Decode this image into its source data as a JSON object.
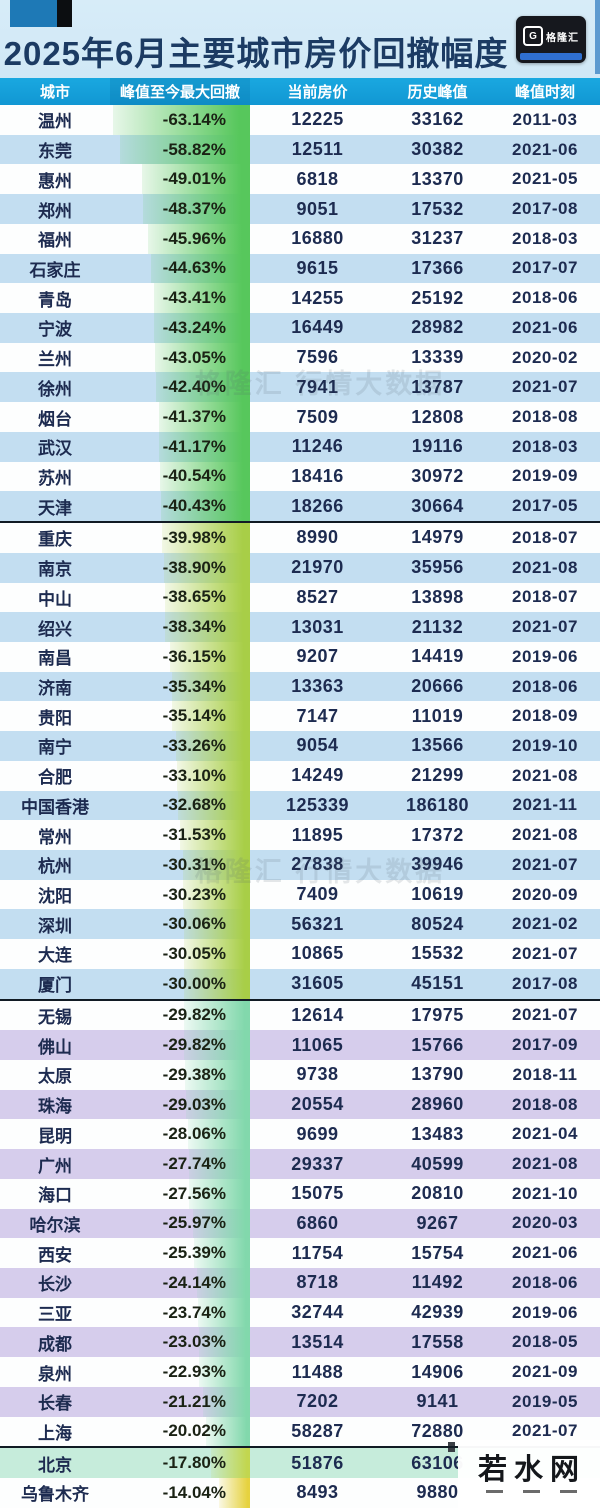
{
  "page_title": "2025年6月主要城市房价回撤幅度",
  "branding": {
    "logo_text": "格隆汇",
    "logo_glyph": "G"
  },
  "watermarks": {
    "center_text": "格隆汇 行情大数据",
    "corner_text": "若水网"
  },
  "colors": {
    "header_bg": "#1199d4",
    "row_tint_blue": "#c3def1",
    "row_tint_purple": "#d6cdec",
    "row_tint_teal": "#c6ecdb",
    "text": "#1d2b50",
    "divider": "#111b24",
    "bar_green": "#57c75c",
    "bar_yellowgreen": "#a8ce47",
    "bar_teal": "#82d8ac",
    "bar_olive": "#c2d64f",
    "bar_yellow": "#e6d23f"
  },
  "chart_data": {
    "type": "table",
    "title": "2025年6月主要城市房价回撤幅度",
    "columns": [
      "城市",
      "峰值至今最大回撤",
      "当前房价",
      "历史峰值",
      "峰值时刻"
    ],
    "dividers_after": [
      14,
      30,
      45
    ],
    "rows": [
      {
        "city": "温州",
        "pct": -63.14,
        "drawdown": "-63.14%",
        "price": "12225",
        "peak": "33162",
        "date": "2011-03",
        "band": "blue",
        "bar": "bar_green"
      },
      {
        "city": "东莞",
        "pct": -58.82,
        "drawdown": "-58.82%",
        "price": "12511",
        "peak": "30382",
        "date": "2021-06",
        "band": "blue",
        "bar": "bar_green"
      },
      {
        "city": "惠州",
        "pct": -49.01,
        "drawdown": "-49.01%",
        "price": "6818",
        "peak": "13370",
        "date": "2021-05",
        "band": "blue",
        "bar": "bar_green"
      },
      {
        "city": "郑州",
        "pct": -48.37,
        "drawdown": "-48.37%",
        "price": "9051",
        "peak": "17532",
        "date": "2017-08",
        "band": "blue",
        "bar": "bar_green"
      },
      {
        "city": "福州",
        "pct": -45.96,
        "drawdown": "-45.96%",
        "price": "16880",
        "peak": "31237",
        "date": "2018-03",
        "band": "blue",
        "bar": "bar_green"
      },
      {
        "city": "石家庄",
        "pct": -44.63,
        "drawdown": "-44.63%",
        "price": "9615",
        "peak": "17366",
        "date": "2017-07",
        "band": "blue",
        "bar": "bar_green"
      },
      {
        "city": "青岛",
        "pct": -43.41,
        "drawdown": "-43.41%",
        "price": "14255",
        "peak": "25192",
        "date": "2018-06",
        "band": "blue",
        "bar": "bar_green"
      },
      {
        "city": "宁波",
        "pct": -43.24,
        "drawdown": "-43.24%",
        "price": "16449",
        "peak": "28982",
        "date": "2021-06",
        "band": "blue",
        "bar": "bar_green"
      },
      {
        "city": "兰州",
        "pct": -43.05,
        "drawdown": "-43.05%",
        "price": "7596",
        "peak": "13339",
        "date": "2020-02",
        "band": "blue",
        "bar": "bar_green"
      },
      {
        "city": "徐州",
        "pct": -42.4,
        "drawdown": "-42.40%",
        "price": "7941",
        "peak": "13787",
        "date": "2021-07",
        "band": "blue",
        "bar": "bar_green"
      },
      {
        "city": "烟台",
        "pct": -41.37,
        "drawdown": "-41.37%",
        "price": "7509",
        "peak": "12808",
        "date": "2018-08",
        "band": "blue",
        "bar": "bar_green"
      },
      {
        "city": "武汉",
        "pct": -41.17,
        "drawdown": "-41.17%",
        "price": "11246",
        "peak": "19116",
        "date": "2018-03",
        "band": "blue",
        "bar": "bar_green"
      },
      {
        "city": "苏州",
        "pct": -40.54,
        "drawdown": "-40.54%",
        "price": "18416",
        "peak": "30972",
        "date": "2019-09",
        "band": "blue",
        "bar": "bar_green"
      },
      {
        "city": "天津",
        "pct": -40.43,
        "drawdown": "-40.43%",
        "price": "18266",
        "peak": "30664",
        "date": "2017-05",
        "band": "blue",
        "bar": "bar_green"
      },
      {
        "city": "重庆",
        "pct": -39.98,
        "drawdown": "-39.98%",
        "price": "8990",
        "peak": "14979",
        "date": "2018-07",
        "band": "blue",
        "bar": "bar_yellowgreen"
      },
      {
        "city": "南京",
        "pct": -38.9,
        "drawdown": "-38.90%",
        "price": "21970",
        "peak": "35956",
        "date": "2021-08",
        "band": "blue",
        "bar": "bar_yellowgreen"
      },
      {
        "city": "中山",
        "pct": -38.65,
        "drawdown": "-38.65%",
        "price": "8527",
        "peak": "13898",
        "date": "2018-07",
        "band": "blue",
        "bar": "bar_yellowgreen"
      },
      {
        "city": "绍兴",
        "pct": -38.34,
        "drawdown": "-38.34%",
        "price": "13031",
        "peak": "21132",
        "date": "2021-07",
        "band": "blue",
        "bar": "bar_yellowgreen"
      },
      {
        "city": "南昌",
        "pct": -36.15,
        "drawdown": "-36.15%",
        "price": "9207",
        "peak": "14419",
        "date": "2019-06",
        "band": "blue",
        "bar": "bar_yellowgreen"
      },
      {
        "city": "济南",
        "pct": -35.34,
        "drawdown": "-35.34%",
        "price": "13363",
        "peak": "20666",
        "date": "2018-06",
        "band": "blue",
        "bar": "bar_yellowgreen"
      },
      {
        "city": "贵阳",
        "pct": -35.14,
        "drawdown": "-35.14%",
        "price": "7147",
        "peak": "11019",
        "date": "2018-09",
        "band": "blue",
        "bar": "bar_yellowgreen"
      },
      {
        "city": "南宁",
        "pct": -33.26,
        "drawdown": "-33.26%",
        "price": "9054",
        "peak": "13566",
        "date": "2019-10",
        "band": "blue",
        "bar": "bar_yellowgreen"
      },
      {
        "city": "合肥",
        "pct": -33.1,
        "drawdown": "-33.10%",
        "price": "14249",
        "peak": "21299",
        "date": "2021-08",
        "band": "blue",
        "bar": "bar_yellowgreen"
      },
      {
        "city": "中国香港",
        "pct": -32.68,
        "drawdown": "-32.68%",
        "price": "125339",
        "peak": "186180",
        "date": "2021-11",
        "band": "blue",
        "bar": "bar_yellowgreen"
      },
      {
        "city": "常州",
        "pct": -31.53,
        "drawdown": "-31.53%",
        "price": "11895",
        "peak": "17372",
        "date": "2021-08",
        "band": "blue",
        "bar": "bar_yellowgreen"
      },
      {
        "city": "杭州",
        "pct": -30.31,
        "drawdown": "-30.31%",
        "price": "27838",
        "peak": "39946",
        "date": "2021-07",
        "band": "blue",
        "bar": "bar_yellowgreen"
      },
      {
        "city": "沈阳",
        "pct": -30.23,
        "drawdown": "-30.23%",
        "price": "7409",
        "peak": "10619",
        "date": "2020-09",
        "band": "blue",
        "bar": "bar_yellowgreen"
      },
      {
        "city": "深圳",
        "pct": -30.06,
        "drawdown": "-30.06%",
        "price": "56321",
        "peak": "80524",
        "date": "2021-02",
        "band": "blue",
        "bar": "bar_yellowgreen"
      },
      {
        "city": "大连",
        "pct": -30.05,
        "drawdown": "-30.05%",
        "price": "10865",
        "peak": "15532",
        "date": "2021-07",
        "band": "blue",
        "bar": "bar_yellowgreen"
      },
      {
        "city": "厦门",
        "pct": -30.0,
        "drawdown": "-30.00%",
        "price": "31605",
        "peak": "45151",
        "date": "2017-08",
        "band": "blue",
        "bar": "bar_yellowgreen"
      },
      {
        "city": "无锡",
        "pct": -29.82,
        "drawdown": "-29.82%",
        "price": "12614",
        "peak": "17975",
        "date": "2021-07",
        "band": "purple",
        "bar": "bar_teal"
      },
      {
        "city": "佛山",
        "pct": -29.82,
        "drawdown": "-29.82%",
        "price": "11065",
        "peak": "15766",
        "date": "2017-09",
        "band": "purple",
        "bar": "bar_teal"
      },
      {
        "city": "太原",
        "pct": -29.38,
        "drawdown": "-29.38%",
        "price": "9738",
        "peak": "13790",
        "date": "2018-11",
        "band": "purple",
        "bar": "bar_teal"
      },
      {
        "city": "珠海",
        "pct": -29.03,
        "drawdown": "-29.03%",
        "price": "20554",
        "peak": "28960",
        "date": "2018-08",
        "band": "purple",
        "bar": "bar_teal"
      },
      {
        "city": "昆明",
        "pct": -28.06,
        "drawdown": "-28.06%",
        "price": "9699",
        "peak": "13483",
        "date": "2021-04",
        "band": "purple",
        "bar": "bar_teal"
      },
      {
        "city": "广州",
        "pct": -27.74,
        "drawdown": "-27.74%",
        "price": "29337",
        "peak": "40599",
        "date": "2021-08",
        "band": "purple",
        "bar": "bar_teal"
      },
      {
        "city": "海口",
        "pct": -27.56,
        "drawdown": "-27.56%",
        "price": "15075",
        "peak": "20810",
        "date": "2021-10",
        "band": "purple",
        "bar": "bar_teal"
      },
      {
        "city": "哈尔滨",
        "pct": -25.97,
        "drawdown": "-25.97%",
        "price": "6860",
        "peak": "9267",
        "date": "2020-03",
        "band": "purple",
        "bar": "bar_teal"
      },
      {
        "city": "西安",
        "pct": -25.39,
        "drawdown": "-25.39%",
        "price": "11754",
        "peak": "15754",
        "date": "2021-06",
        "band": "purple",
        "bar": "bar_teal"
      },
      {
        "city": "长沙",
        "pct": -24.14,
        "drawdown": "-24.14%",
        "price": "8718",
        "peak": "11492",
        "date": "2018-06",
        "band": "purple",
        "bar": "bar_teal"
      },
      {
        "city": "三亚",
        "pct": -23.74,
        "drawdown": "-23.74%",
        "price": "32744",
        "peak": "42939",
        "date": "2019-06",
        "band": "purple",
        "bar": "bar_teal"
      },
      {
        "city": "成都",
        "pct": -23.03,
        "drawdown": "-23.03%",
        "price": "13514",
        "peak": "17558",
        "date": "2018-05",
        "band": "purple",
        "bar": "bar_teal"
      },
      {
        "city": "泉州",
        "pct": -22.93,
        "drawdown": "-22.93%",
        "price": "11488",
        "peak": "14906",
        "date": "2021-09",
        "band": "purple",
        "bar": "bar_teal"
      },
      {
        "city": "长春",
        "pct": -21.21,
        "drawdown": "-21.21%",
        "price": "7202",
        "peak": "9141",
        "date": "2019-05",
        "band": "purple",
        "bar": "bar_teal"
      },
      {
        "city": "上海",
        "pct": -20.02,
        "drawdown": "-20.02%",
        "price": "58287",
        "peak": "72880",
        "date": "2021-07",
        "band": "purple",
        "bar": "bar_teal"
      },
      {
        "city": "北京",
        "pct": -17.8,
        "drawdown": "-17.80%",
        "price": "51876",
        "peak": "63106",
        "date": "",
        "band": "teal",
        "bar": "bar_olive"
      },
      {
        "city": "乌鲁木齐",
        "pct": -14.04,
        "drawdown": "-14.04%",
        "price": "8493",
        "peak": "9880",
        "date": "",
        "band": "teal",
        "bar": "bar_yellow"
      }
    ]
  }
}
